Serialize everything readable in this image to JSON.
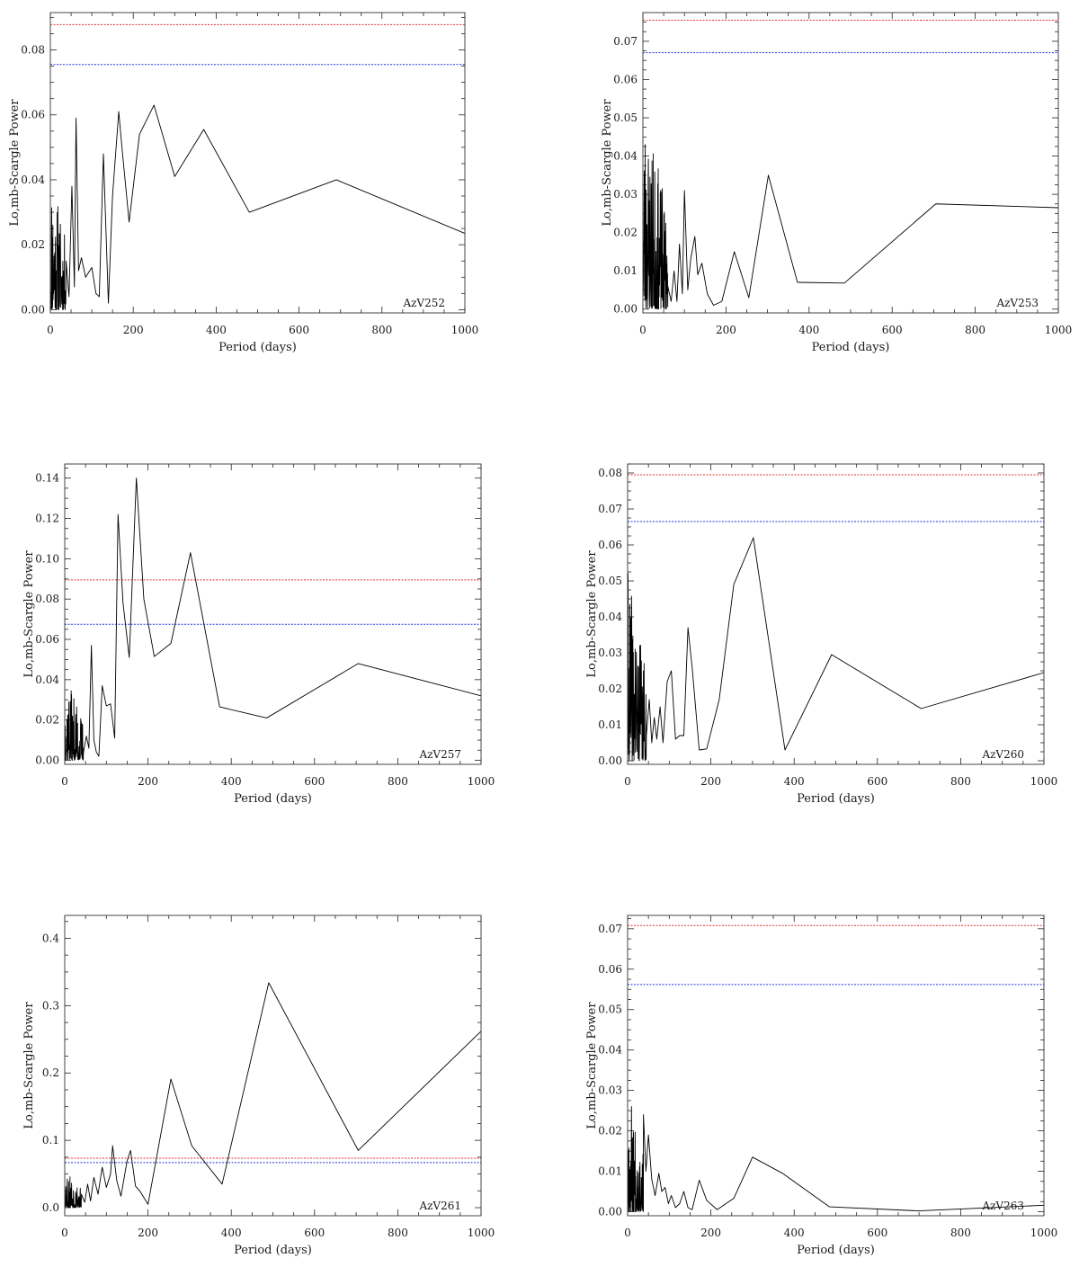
{
  "chart_data": [
    {
      "type": "line",
      "label": "AzV252",
      "xlabel": "Period (days)",
      "ylabel": "Lo,mb-Scargle Power",
      "xlim": [
        0,
        1000
      ],
      "ylim": [
        -0.001,
        0.0915
      ],
      "xticks": [
        0,
        200,
        400,
        600,
        800,
        1000
      ],
      "yticks": [
        0.0,
        0.02,
        0.04,
        0.06,
        0.08
      ],
      "ytick_labels": [
        "0.00",
        "0.02",
        "0.04",
        "0.06",
        "0.08"
      ],
      "thresholds": [
        {
          "value": 0.0878,
          "color": "#e03030"
        },
        {
          "value": 0.0755,
          "color": "#2a35e0"
        }
      ],
      "series": [
        {
          "color": "#000000",
          "noise_peak": 0.046,
          "noise_seed": 11,
          "x": [
            38,
            45,
            52,
            58,
            62,
            68,
            75,
            85,
            100,
            110,
            118,
            128,
            140,
            150,
            165,
            172,
            190,
            215,
            250,
            300,
            370,
            480,
            690,
            1000
          ],
          "y": [
            0.015,
            0.004,
            0.038,
            0.007,
            0.059,
            0.012,
            0.016,
            0.01,
            0.013,
            0.005,
            0.004,
            0.048,
            0.002,
            0.035,
            0.061,
            0.051,
            0.027,
            0.054,
            0.063,
            0.041,
            0.0555,
            0.03,
            0.04,
            0.0235
          ]
        }
      ]
    },
    {
      "type": "line",
      "label": "AzV253",
      "xlabel": "Period (days)",
      "ylabel": "Lo,mb-Scargle Power",
      "xlim": [
        0,
        1000
      ],
      "ylim": [
        -0.001,
        0.0775
      ],
      "xticks": [
        0,
        200,
        400,
        600,
        800,
        1000
      ],
      "yticks": [
        0.0,
        0.01,
        0.02,
        0.03,
        0.04,
        0.05,
        0.06,
        0.07
      ],
      "ytick_labels": [
        "0.00",
        "0.01",
        "0.02",
        "0.03",
        "0.04",
        "0.05",
        "0.06",
        "0.07"
      ],
      "thresholds": [
        {
          "value": 0.0755,
          "color": "#e03030"
        },
        {
          "value": 0.067,
          "color": "#2a35e0"
        }
      ],
      "series": [
        {
          "color": "#000000",
          "noise_peak": 0.0555,
          "noise_seed": 23,
          "x": [
            60,
            68,
            75,
            82,
            88,
            95,
            100,
            108,
            115,
            125,
            132,
            142,
            155,
            170,
            190,
            220,
            255,
            302,
            372,
            485,
            705,
            1000
          ],
          "y": [
            0.006,
            0.002,
            0.01,
            0.002,
            0.017,
            0.004,
            0.031,
            0.005,
            0.013,
            0.019,
            0.009,
            0.012,
            0.004,
            0.001,
            0.002,
            0.015,
            0.003,
            0.035,
            0.007,
            0.0068,
            0.0275,
            0.0265
          ]
        }
      ]
    },
    {
      "type": "line",
      "label": "AzV257",
      "xlabel": "Period (days)",
      "ylabel": "Lo,mb-Scargle Power",
      "xlim": [
        0,
        1000
      ],
      "ylim": [
        -0.002,
        0.147
      ],
      "xticks": [
        0,
        200,
        400,
        600,
        800,
        1000
      ],
      "yticks": [
        0.0,
        0.02,
        0.04,
        0.06,
        0.08,
        0.1,
        0.12,
        0.14
      ],
      "ytick_labels": [
        "0.00",
        "0.02",
        "0.04",
        "0.06",
        "0.08",
        "0.10",
        "0.12",
        "0.14"
      ],
      "thresholds": [
        {
          "value": 0.0895,
          "color": "#e03030"
        },
        {
          "value": 0.0675,
          "color": "#2a35e0"
        }
      ],
      "series": [
        {
          "color": "#000000",
          "noise_peak": 0.043,
          "noise_seed": 37,
          "x": [
            45,
            52,
            58,
            64,
            70,
            76,
            82,
            90,
            100,
            110,
            120,
            128,
            140,
            155,
            172,
            190,
            215,
            255,
            302,
            372,
            485,
            705,
            1000
          ],
          "y": [
            0.004,
            0.012,
            0.006,
            0.057,
            0.01,
            0.004,
            0.002,
            0.037,
            0.027,
            0.028,
            0.011,
            0.122,
            0.078,
            0.051,
            0.14,
            0.08,
            0.0515,
            0.058,
            0.103,
            0.0265,
            0.021,
            0.048,
            0.032
          ]
        }
      ]
    },
    {
      "type": "line",
      "label": "AzV260",
      "xlabel": "Period (days)",
      "ylabel": "Lo,mb-Scargle Power",
      "xlim": [
        0,
        1000
      ],
      "ylim": [
        -0.001,
        0.0825
      ],
      "xticks": [
        0,
        200,
        400,
        600,
        800,
        1000
      ],
      "yticks": [
        0.0,
        0.01,
        0.02,
        0.03,
        0.04,
        0.05,
        0.06,
        0.07,
        0.08
      ],
      "ytick_labels": [
        "0.00",
        "0.01",
        "0.02",
        "0.03",
        "0.04",
        "0.05",
        "0.06",
        "0.07",
        "0.08"
      ],
      "thresholds": [
        {
          "value": 0.0795,
          "color": "#e03030"
        },
        {
          "value": 0.0665,
          "color": "#2a35e0"
        }
      ],
      "series": [
        {
          "color": "#000000",
          "noise_peak": 0.053,
          "noise_seed": 41,
          "x": [
            45,
            52,
            58,
            64,
            70,
            78,
            85,
            95,
            105,
            115,
            125,
            135,
            145,
            155,
            172,
            190,
            220,
            255,
            302,
            378,
            490,
            705,
            1000
          ],
          "y": [
            0.007,
            0.017,
            0.005,
            0.012,
            0.006,
            0.015,
            0.005,
            0.022,
            0.025,
            0.006,
            0.007,
            0.007,
            0.037,
            0.026,
            0.003,
            0.0033,
            0.017,
            0.049,
            0.062,
            0.003,
            0.0295,
            0.0145,
            0.0245
          ]
        }
      ]
    },
    {
      "type": "line",
      "label": "AzV261",
      "xlabel": "Period (days)",
      "ylabel": "Lo,mb-Scargle Power",
      "xlim": [
        0,
        1000
      ],
      "ylim": [
        -0.012,
        0.434
      ],
      "xticks": [
        0,
        200,
        400,
        600,
        800,
        1000
      ],
      "yticks": [
        0.0,
        0.1,
        0.2,
        0.3,
        0.4
      ],
      "ytick_labels": [
        "0.0",
        "0.1",
        "0.2",
        "0.3",
        "0.4"
      ],
      "thresholds": [
        {
          "value": 0.0735,
          "color": "#e03030"
        },
        {
          "value": 0.067,
          "color": "#2a35e0"
        }
      ],
      "series": [
        {
          "color": "#000000",
          "noise_peak": 0.065,
          "noise_seed": 53,
          "x": [
            40,
            48,
            55,
            62,
            70,
            80,
            90,
            100,
            110,
            115,
            125,
            135,
            150,
            158,
            170,
            180,
            200,
            255,
            305,
            378,
            490,
            705,
            1000
          ],
          "y": [
            0.02,
            0.008,
            0.035,
            0.01,
            0.045,
            0.02,
            0.06,
            0.03,
            0.05,
            0.092,
            0.04,
            0.017,
            0.07,
            0.085,
            0.032,
            0.025,
            0.005,
            0.191,
            0.092,
            0.035,
            0.334,
            0.085,
            0.262
          ]
        }
      ]
    },
    {
      "type": "line",
      "label": "AzV263",
      "xlabel": "Period (days)",
      "ylabel": "Lo,mb-Scargle Power",
      "xlim": [
        0,
        1000
      ],
      "ylim": [
        -0.001,
        0.0733
      ],
      "xticks": [
        0,
        200,
        400,
        600,
        800,
        1000
      ],
      "yticks": [
        0.0,
        0.01,
        0.02,
        0.03,
        0.04,
        0.05,
        0.06,
        0.07
      ],
      "ytick_labels": [
        "0.00",
        "0.01",
        "0.02",
        "0.03",
        "0.04",
        "0.05",
        "0.06",
        "0.07"
      ],
      "thresholds": [
        {
          "value": 0.0708,
          "color": "#e03030"
        },
        {
          "value": 0.0562,
          "color": "#2a35e0"
        }
      ],
      "series": [
        {
          "color": "#000000",
          "noise_peak": 0.032,
          "noise_seed": 67,
          "x": [
            38,
            44,
            50,
            58,
            66,
            75,
            82,
            90,
            98,
            105,
            115,
            125,
            135,
            145,
            155,
            172,
            190,
            215,
            255,
            300,
            372,
            485,
            700,
            1000
          ],
          "y": [
            0.024,
            0.01,
            0.019,
            0.008,
            0.004,
            0.0095,
            0.005,
            0.006,
            0.002,
            0.004,
            0.001,
            0.002,
            0.005,
            0.001,
            0.0005,
            0.0078,
            0.0028,
            0.0005,
            0.0033,
            0.0135,
            0.0095,
            0.0012,
            0.0002,
            0.0016
          ]
        }
      ]
    }
  ]
}
